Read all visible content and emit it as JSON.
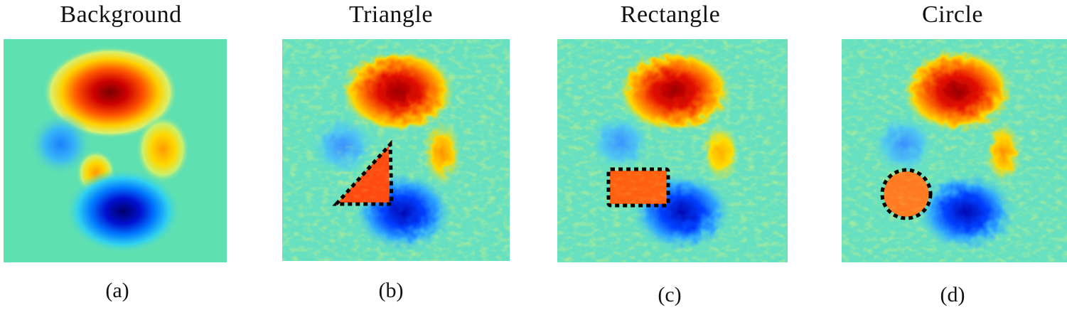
{
  "panels": [
    {
      "title": "Background",
      "caption": "(a)",
      "shape": "none"
    },
    {
      "title": "Triangle",
      "caption": "(b)",
      "shape": "triangle"
    },
    {
      "title": "Rectangle",
      "caption": "(c)",
      "shape": "rectangle"
    },
    {
      "title": "Circle",
      "caption": "(d)",
      "shape": "circle"
    }
  ],
  "colors": {
    "base": "#5fe0b0",
    "hot": "#a80000",
    "cold": "#0000a0",
    "outline": "#000000"
  }
}
